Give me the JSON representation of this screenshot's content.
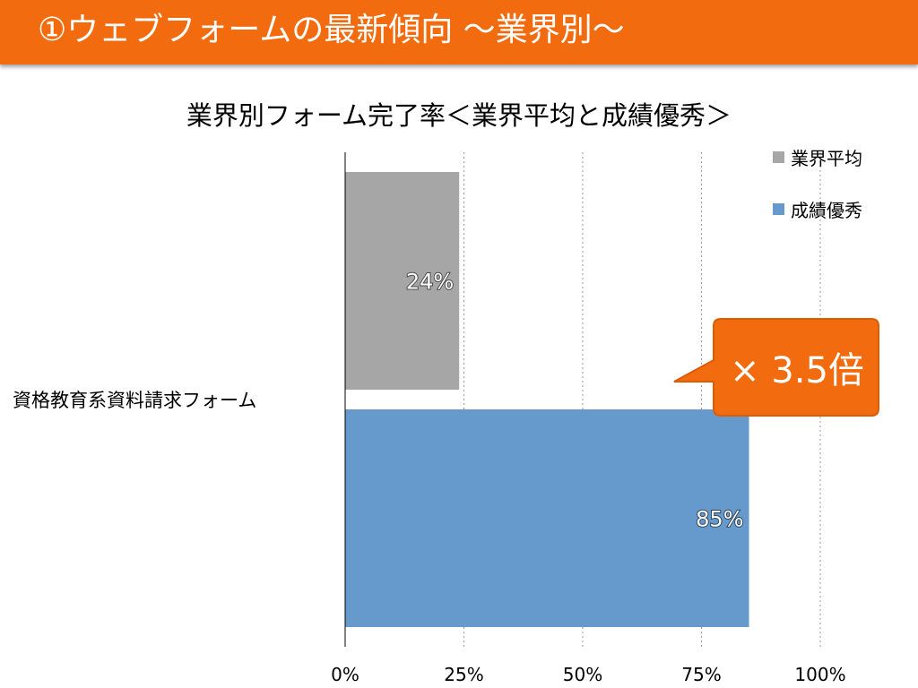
{
  "slide": {
    "title": "①ウェブフォームの最新傾向 ～業界別～"
  },
  "callout": {
    "text": "× 3.5倍"
  },
  "colors": {
    "title_bar": "#f26b0f",
    "series_average": "#a6a6a6",
    "series_top": "#6699cc",
    "callout": "#f26b0f"
  },
  "chart_data": {
    "type": "bar",
    "orientation": "horizontal",
    "title": "業界別フォーム完了率＜業界平均と成績優秀＞",
    "categories": [
      "資格教育系資料請求フォーム"
    ],
    "series": [
      {
        "name": "業界平均",
        "values": [
          24
        ],
        "label": "24%",
        "color": "#a6a6a6"
      },
      {
        "name": "成績優秀",
        "values": [
          85
        ],
        "label": "85%",
        "color": "#6699cc"
      }
    ],
    "xlim": [
      0,
      100
    ],
    "xticks": [
      "0%",
      "25%",
      "50%",
      "75%",
      "100%"
    ],
    "grid": true,
    "legend": "top-right"
  }
}
